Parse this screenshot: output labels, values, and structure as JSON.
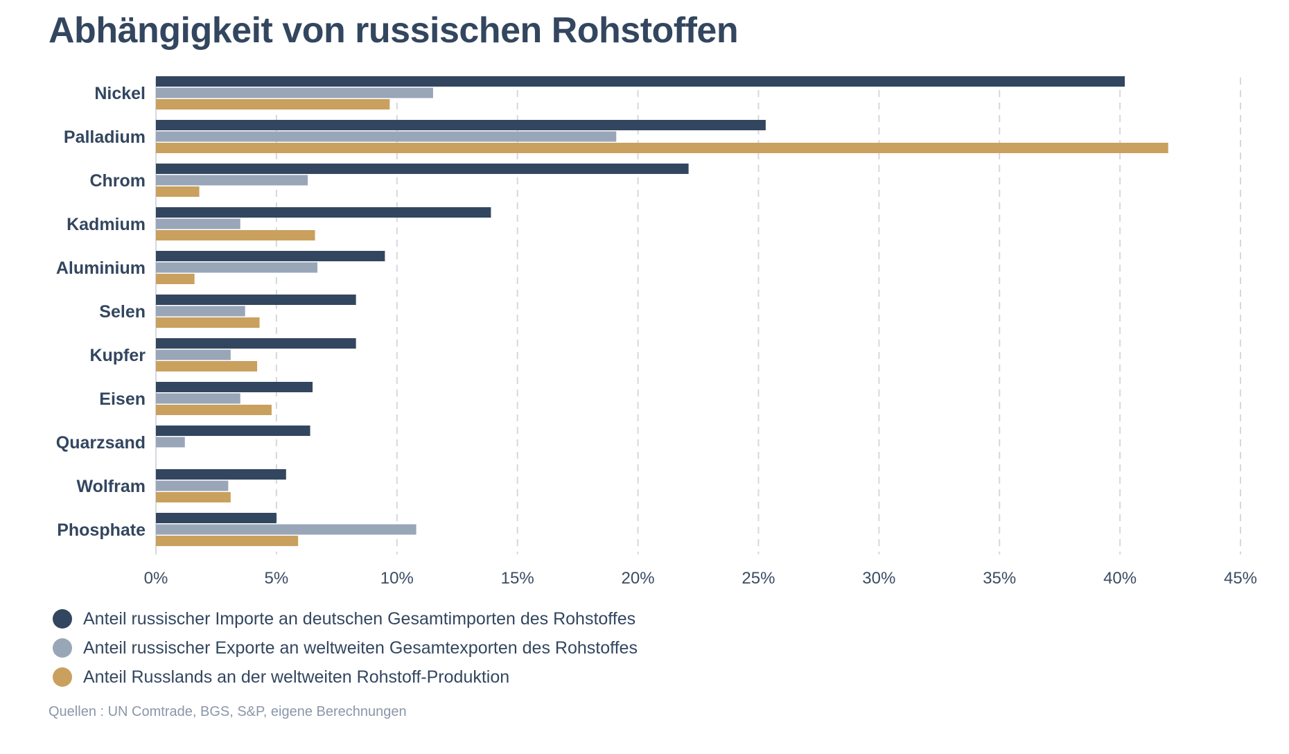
{
  "chart_data": {
    "type": "bar",
    "orientation": "horizontal",
    "title": "Abhängigkeit von russischen Rohstoffen",
    "categories": [
      "Nickel",
      "Palladium",
      "Chrom",
      "Kadmium",
      "Aluminium",
      "Selen",
      "Kupfer",
      "Eisen",
      "Quarzsand",
      "Wolfram",
      "Phosphate"
    ],
    "series": [
      {
        "name": "Anteil russischer Importe an deutschen Gesamtimporten des Rohstoffes",
        "color": "#33465f",
        "values": [
          40.2,
          25.3,
          22.1,
          13.9,
          9.5,
          8.3,
          8.3,
          6.5,
          6.4,
          5.4,
          5.0
        ]
      },
      {
        "name": "Anteil russischer Exporte an weltweiten Gesamtexporten des Rohstoffes",
        "color": "#98a6b8",
        "values": [
          11.5,
          19.1,
          6.3,
          3.5,
          6.7,
          3.7,
          3.1,
          3.5,
          1.2,
          3.0,
          10.8
        ]
      },
      {
        "name": "Anteil Russlands an der weltweiten Rohstoff-Produktion",
        "color": "#c9a05e",
        "values": [
          9.7,
          42.0,
          1.8,
          6.6,
          1.6,
          4.3,
          4.2,
          4.8,
          null,
          3.1,
          5.9
        ]
      }
    ],
    "xlim": [
      0,
      45
    ],
    "x_ticks": [
      "0%",
      "5%",
      "10%",
      "15%",
      "20%",
      "25%",
      "30%",
      "35%",
      "40%",
      "45%"
    ],
    "grid": "vertical-dashed",
    "legend_position": "bottom-left"
  },
  "source": "Quellen : UN Comtrade, BGS, S&P, eigene Berechnungen"
}
